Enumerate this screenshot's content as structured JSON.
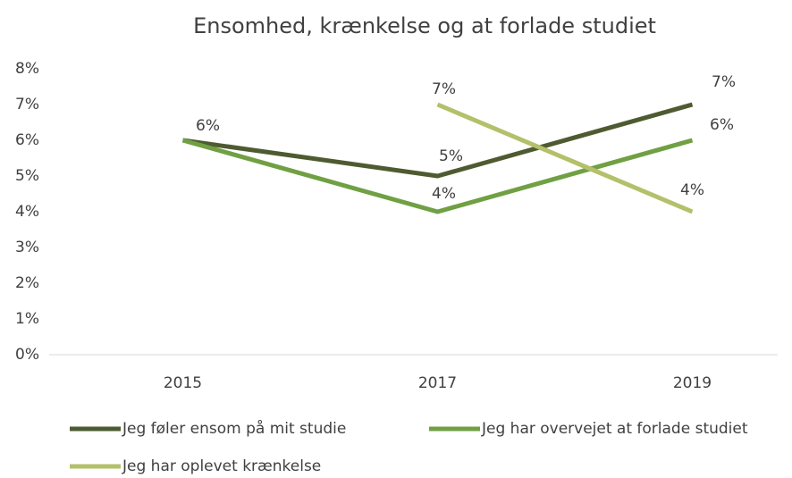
{
  "chart_data": {
    "type": "line",
    "title": "Ensomhed, krænkelse og at forlade studiet",
    "categories": [
      "2015",
      "2017",
      "2019"
    ],
    "series": [
      {
        "name": "Jeg føler ensom på mit studie",
        "color": "#4e5b31",
        "values": [
          6,
          5,
          7
        ],
        "value_labels": [
          "6%",
          "5%",
          "7%"
        ]
      },
      {
        "name": "Jeg har overvejet at forlade studiet",
        "color": "#70a043",
        "values": [
          6,
          4,
          6
        ],
        "value_labels": [
          null,
          "4%",
          "6%"
        ]
      },
      {
        "name": "Jeg har oplevet krænkelse",
        "color": "#b4c06a",
        "values": [
          null,
          7,
          4
        ],
        "value_labels": [
          null,
          "7%",
          "4%"
        ]
      }
    ],
    "ylim": [
      0,
      8
    ],
    "yticks": [
      {
        "value": 0,
        "label": "0%"
      },
      {
        "value": 1,
        "label": "1%"
      },
      {
        "value": 2,
        "label": "2%"
      },
      {
        "value": 3,
        "label": "3%"
      },
      {
        "value": 4,
        "label": "4%"
      },
      {
        "value": 5,
        "label": "5%"
      },
      {
        "value": 6,
        "label": "6%"
      },
      {
        "value": 7,
        "label": "7%"
      },
      {
        "value": 8,
        "label": "8%"
      }
    ],
    "grid": false,
    "legend": "bottom"
  }
}
